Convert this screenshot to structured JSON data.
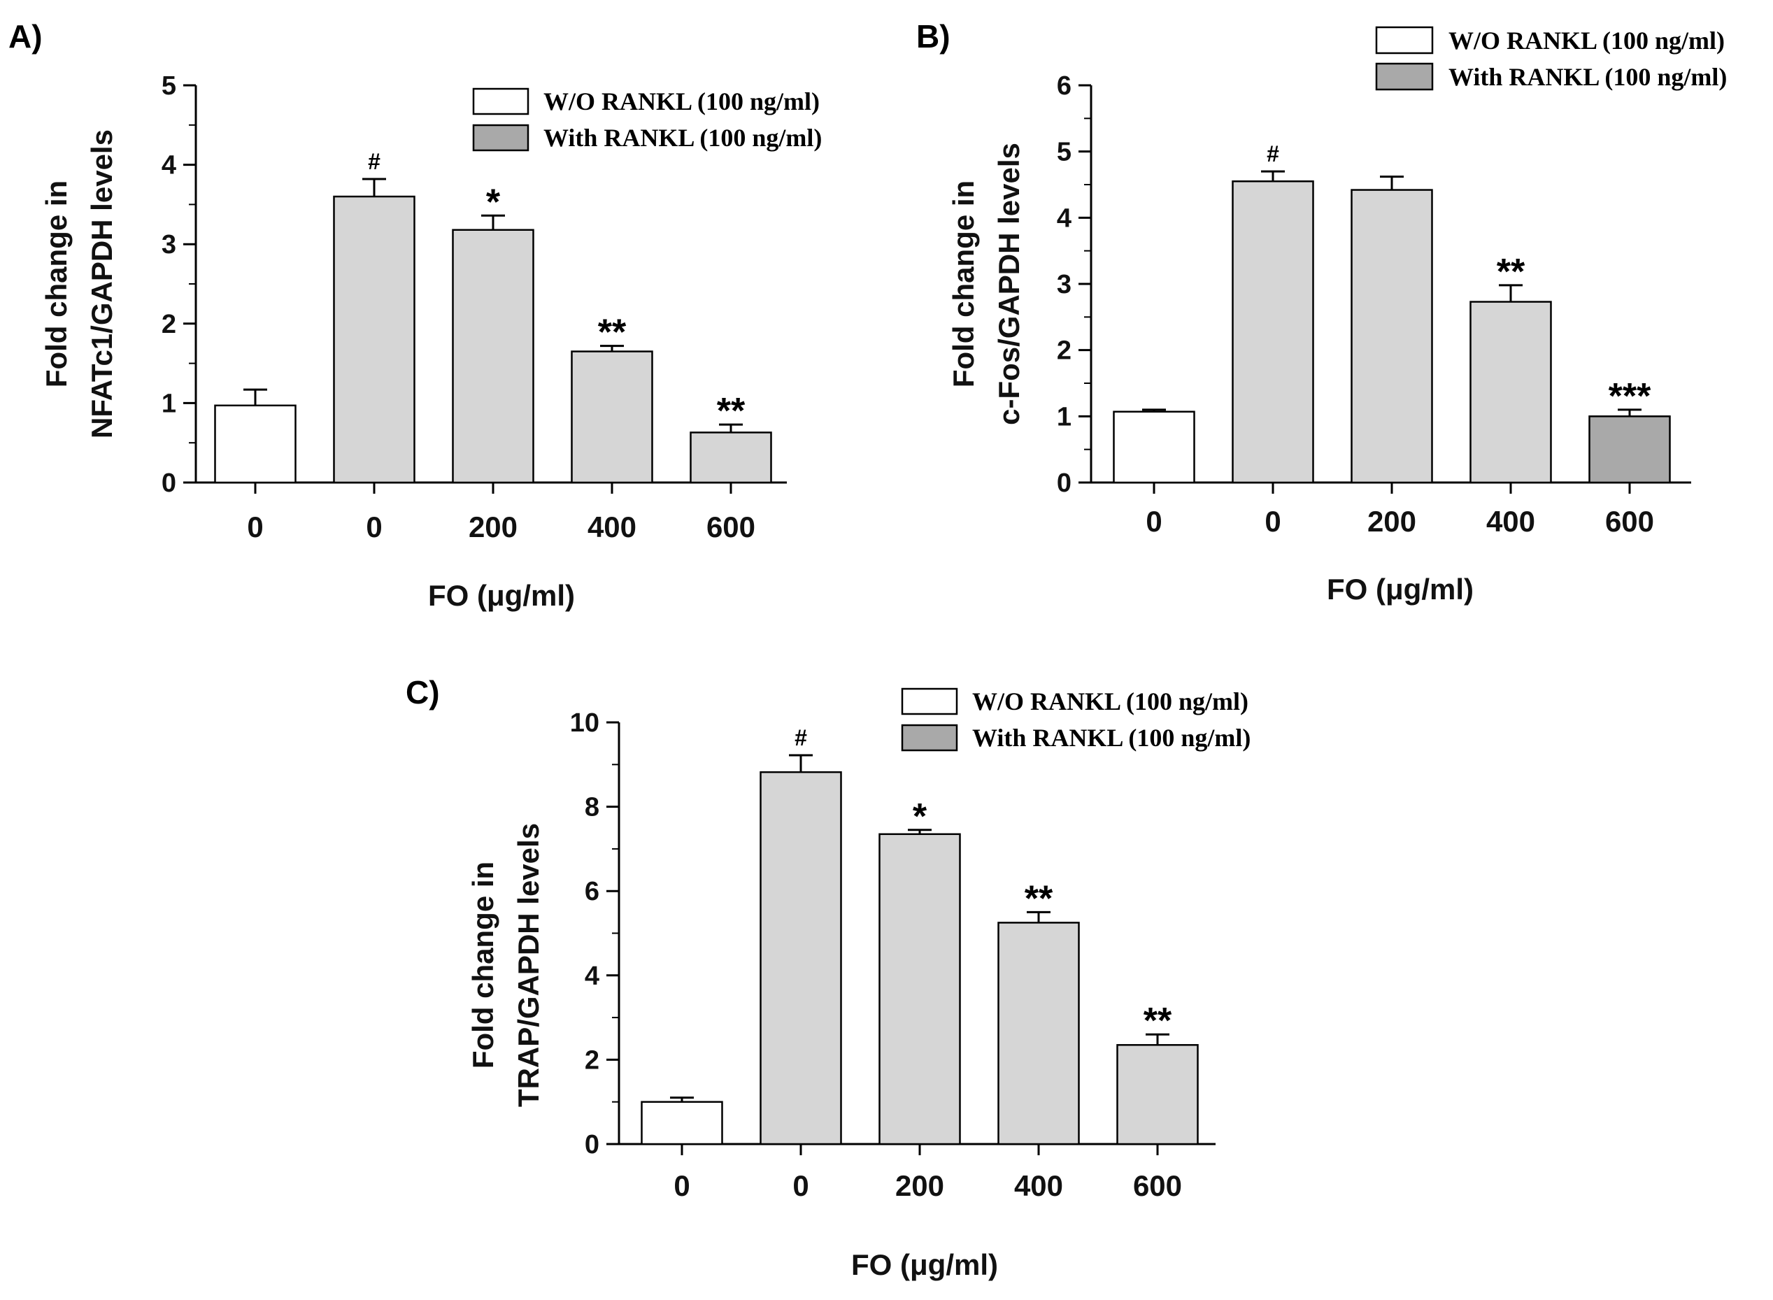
{
  "figure": {
    "legend": {
      "without_label": "W/O RANKL (100 ng/ml)",
      "with_label": "With RANKL (100 ng/ml)"
    },
    "colors": {
      "without_fill": "#ffffff",
      "with_fill_light": "#d6d6d6",
      "with_fill_dark": "#a9a9a9",
      "stroke": "#000000"
    }
  },
  "chart_data": [
    {
      "id": "A",
      "panel_label": "A)",
      "type": "bar",
      "title": "",
      "xlabel": "FO (μg/ml)",
      "ylabel_line1": "Fold change in",
      "ylabel_line2": "NFATc1/GAPDH levels",
      "ylim": [
        0,
        5
      ],
      "yticks": [
        0,
        1,
        2,
        3,
        4,
        5
      ],
      "categories": [
        "0",
        "0",
        "200",
        "400",
        "600"
      ],
      "rankl": [
        "without",
        "with",
        "with",
        "with",
        "with"
      ],
      "values": [
        0.97,
        3.6,
        3.18,
        1.65,
        0.63
      ],
      "errors": [
        0.2,
        0.22,
        0.18,
        0.07,
        0.1
      ],
      "significance": [
        "",
        "#",
        "*",
        "**",
        "**"
      ],
      "legend_position": "top-right"
    },
    {
      "id": "B",
      "panel_label": "B)",
      "type": "bar",
      "title": "",
      "xlabel": "FO (μg/ml)",
      "ylabel_line1": "Fold change in",
      "ylabel_line2": "c-Fos/GAPDH levels",
      "ylim": [
        0,
        6
      ],
      "yticks": [
        0,
        1,
        2,
        3,
        4,
        5,
        6
      ],
      "categories": [
        "0",
        "0",
        "200",
        "400",
        "600"
      ],
      "rankl": [
        "without",
        "with",
        "with",
        "with",
        "with"
      ],
      "values": [
        1.07,
        4.55,
        4.42,
        2.73,
        1.0
      ],
      "errors": [
        0.03,
        0.15,
        0.2,
        0.25,
        0.1
      ],
      "significance": [
        "",
        "#",
        "",
        "**",
        "***"
      ],
      "legend_position": "top-right"
    },
    {
      "id": "C",
      "panel_label": "C)",
      "type": "bar",
      "title": "",
      "xlabel": "FO (μg/ml)",
      "ylabel_line1": "Fold change in",
      "ylabel_line2": "TRAP/GAPDH levels",
      "ylim": [
        0,
        10
      ],
      "yticks": [
        0,
        2,
        4,
        6,
        8,
        10
      ],
      "categories": [
        "0",
        "0",
        "200",
        "400",
        "600"
      ],
      "rankl": [
        "without",
        "with",
        "with",
        "with",
        "with"
      ],
      "values": [
        1.0,
        8.82,
        7.35,
        5.25,
        2.35
      ],
      "errors": [
        0.1,
        0.4,
        0.1,
        0.25,
        0.25
      ],
      "significance": [
        "",
        "#",
        "*",
        "**",
        "**"
      ],
      "legend_position": "top-right"
    }
  ]
}
